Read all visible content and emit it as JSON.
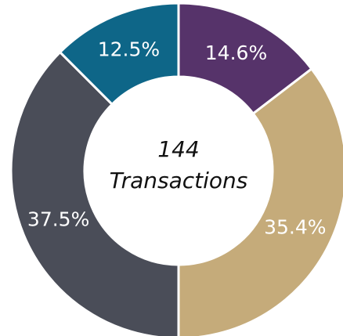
{
  "chart_data": {
    "type": "donut",
    "center_value": 144,
    "center_label": "Transactions",
    "categories": [
      null,
      null,
      null,
      null
    ],
    "values": [
      14.6,
      35.4,
      37.5,
      12.5
    ],
    "value_labels": [
      "14.6%",
      "35.4%",
      "37.5%",
      "12.5%"
    ],
    "colors": [
      "#56336a",
      "#c5ab7a",
      "#4a4d58",
      "#0e6688"
    ]
  }
}
